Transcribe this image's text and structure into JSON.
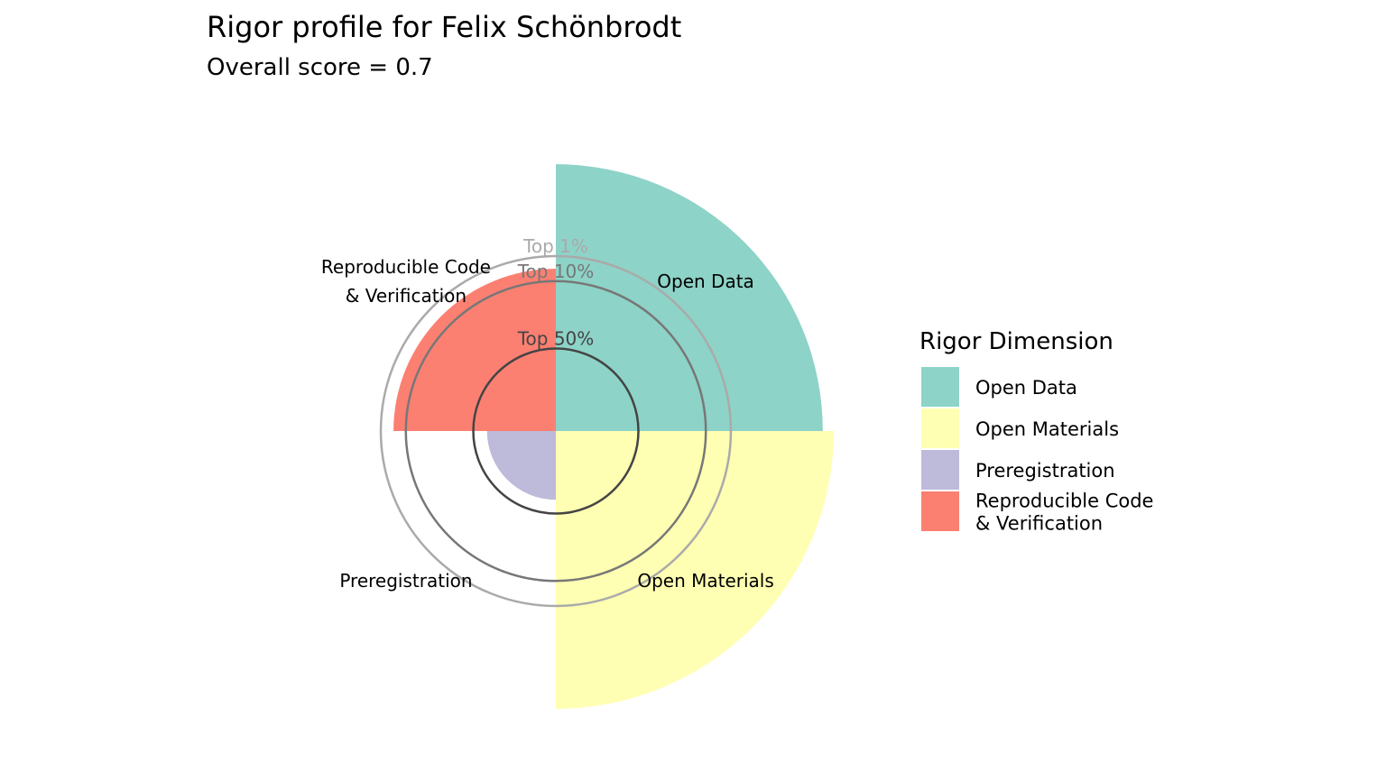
{
  "chart_data": {
    "type": "polar-bar",
    "title": "Rigor profile for Felix Schönbrodt",
    "subtitle": "Overall score = 0.7",
    "rmax": 1.0,
    "categories": [
      {
        "label_lines": [
          "Open Data"
        ],
        "legend_lines": [
          "Open Data"
        ],
        "value": 0.97,
        "color": "#8DD3C7"
      },
      {
        "label_lines": [
          "Open Materials"
        ],
        "legend_lines": [
          "Open Materials"
        ],
        "value": 1.01,
        "color": "#FFFFB3"
      },
      {
        "label_lines": [
          "Preregistration"
        ],
        "legend_lines": [
          "Preregistration"
        ],
        "value": 0.25,
        "color": "#BEBADA"
      },
      {
        "label_lines": [
          "Reproducible Code",
          "& Verification"
        ],
        "legend_lines": [
          "Reproducible Code",
          "& Verification"
        ],
        "value": 0.59,
        "color": "#FB8072"
      }
    ],
    "reference_rings": [
      {
        "label": "Top 50%",
        "value": 0.3,
        "color": "#444444"
      },
      {
        "label": "Top 10%",
        "value": 0.545,
        "color": "#777777"
      },
      {
        "label": "Top 1%",
        "value": 0.636,
        "color": "#AAAAAA"
      }
    ],
    "legend": {
      "title": "Rigor Dimension",
      "position": "right"
    }
  }
}
